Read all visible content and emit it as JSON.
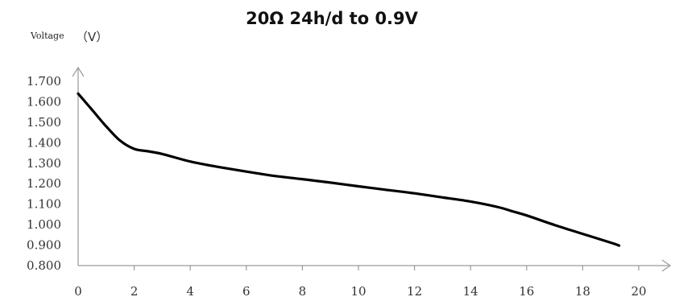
{
  "chart_data": {
    "type": "line",
    "title": "20Ω 24h/d to 0.9V",
    "ylabel": "Voltage",
    "yunit": "（V）",
    "xlabel": "",
    "xlim": [
      0,
      20
    ],
    "ylim": [
      0.8,
      1.7
    ],
    "xticks": [
      "0",
      "2",
      "4",
      "6",
      "8",
      "10",
      "12",
      "14",
      "16",
      "18",
      "20"
    ],
    "yticks": [
      "0.800",
      "0.900",
      "1.000",
      "1.100",
      "1.200",
      "1.300",
      "1.400",
      "1.500",
      "1.600",
      "1.700"
    ],
    "grid": false,
    "series": [
      {
        "color": "#000000",
        "x": [
          0,
          0.5,
          1.0,
          1.5,
          2.0,
          2.5,
          3,
          4,
          5,
          6,
          7,
          8,
          9,
          10,
          11,
          12,
          13,
          14,
          15,
          15.5,
          16,
          17,
          18,
          19,
          19.3
        ],
        "y": [
          1.64,
          1.56,
          1.48,
          1.41,
          1.37,
          1.358,
          1.345,
          1.308,
          1.282,
          1.259,
          1.238,
          1.222,
          1.205,
          1.187,
          1.17,
          1.153,
          1.133,
          1.113,
          1.085,
          1.065,
          1.045,
          0.998,
          0.955,
          0.912,
          0.898
        ]
      }
    ]
  }
}
